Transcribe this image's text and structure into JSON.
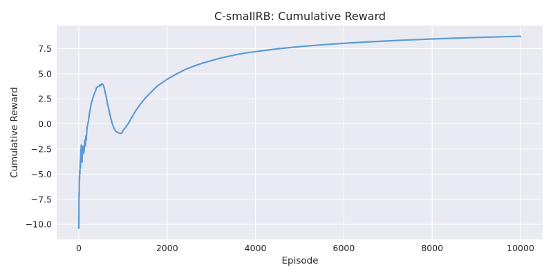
{
  "chart_data": {
    "type": "line",
    "title": "C-smallRB: Cumulative Reward",
    "xlabel": "Episode",
    "ylabel": "Cumulative Reward",
    "xlim": [
      -500,
      10500
    ],
    "ylim": [
      -11.5,
      9.8
    ],
    "xticks": [
      0,
      2000,
      4000,
      6000,
      8000,
      10000
    ],
    "yticks": [
      -10.0,
      -7.5,
      -5.0,
      -2.5,
      0.0,
      2.5,
      5.0,
      7.5
    ],
    "xtick_labels": [
      "0",
      "2000",
      "4000",
      "6000",
      "8000",
      "10000"
    ],
    "ytick_labels": [
      "−10.0",
      "−7.5",
      "−5.0",
      "−2.5",
      "0.0",
      "2.5",
      "5.0",
      "7.5"
    ],
    "grid": true,
    "legend": "none",
    "colors": {
      "line": "#5b9bd5",
      "plot_background": "#eaeaf2",
      "grid": "#ffffff"
    },
    "series": [
      {
        "x": [
          1,
          2,
          3,
          5,
          8,
          10,
          12,
          15,
          18,
          20,
          25,
          30,
          35,
          40,
          45,
          50,
          55,
          60,
          65,
          70,
          75,
          80,
          90,
          100,
          110,
          120,
          130,
          140,
          150,
          160,
          170,
          180,
          190,
          200,
          220,
          240,
          260,
          280,
          300,
          320,
          350,
          380,
          400,
          430,
          460,
          480,
          500,
          520,
          540,
          560,
          580,
          600,
          620,
          650,
          680,
          700,
          730,
          760,
          800,
          840,
          880,
          920,
          950,
          970,
          990,
          1000,
          1050,
          1100,
          1150,
          1200,
          1300,
          1400,
          1500,
          1600,
          1700,
          1800,
          1900,
          2000,
          2200,
          2400,
          2600,
          2800,
          3000,
          3200,
          3400,
          3600,
          3800,
          4000,
          4500,
          5000,
          5500,
          6000,
          6500,
          7000,
          7500,
          8000,
          8500,
          9000,
          9500,
          10000
        ],
        "y": [
          -10.4,
          -10.2,
          -9.0,
          -7.8,
          -6.8,
          -7.2,
          -6.0,
          -5.2,
          -5.6,
          -4.6,
          -5.0,
          -4.2,
          -3.6,
          -4.4,
          -2.6,
          -3.0,
          -2.1,
          -2.5,
          -3.2,
          -2.2,
          -3.8,
          -2.6,
          -2.3,
          -3.0,
          -2.2,
          -2.8,
          -2.0,
          -1.6,
          -2.2,
          -1.2,
          -1.6,
          -0.8,
          -0.3,
          -0.1,
          0.3,
          1.0,
          1.5,
          2.0,
          2.3,
          2.6,
          3.0,
          3.3,
          3.6,
          3.7,
          3.75,
          3.9,
          3.8,
          4.0,
          3.95,
          3.85,
          3.5,
          3.1,
          2.7,
          2.0,
          1.5,
          1.0,
          0.5,
          0.0,
          -0.45,
          -0.75,
          -0.85,
          -0.92,
          -0.95,
          -0.9,
          -0.8,
          -0.65,
          -0.4,
          -0.1,
          0.25,
          0.65,
          1.4,
          2.0,
          2.55,
          3.0,
          3.45,
          3.85,
          4.15,
          4.45,
          4.95,
          5.4,
          5.75,
          6.05,
          6.3,
          6.55,
          6.75,
          6.93,
          7.08,
          7.2,
          7.48,
          7.7,
          7.88,
          8.03,
          8.16,
          8.27,
          8.37,
          8.46,
          8.54,
          8.61,
          8.67,
          8.73
        ]
      }
    ]
  }
}
